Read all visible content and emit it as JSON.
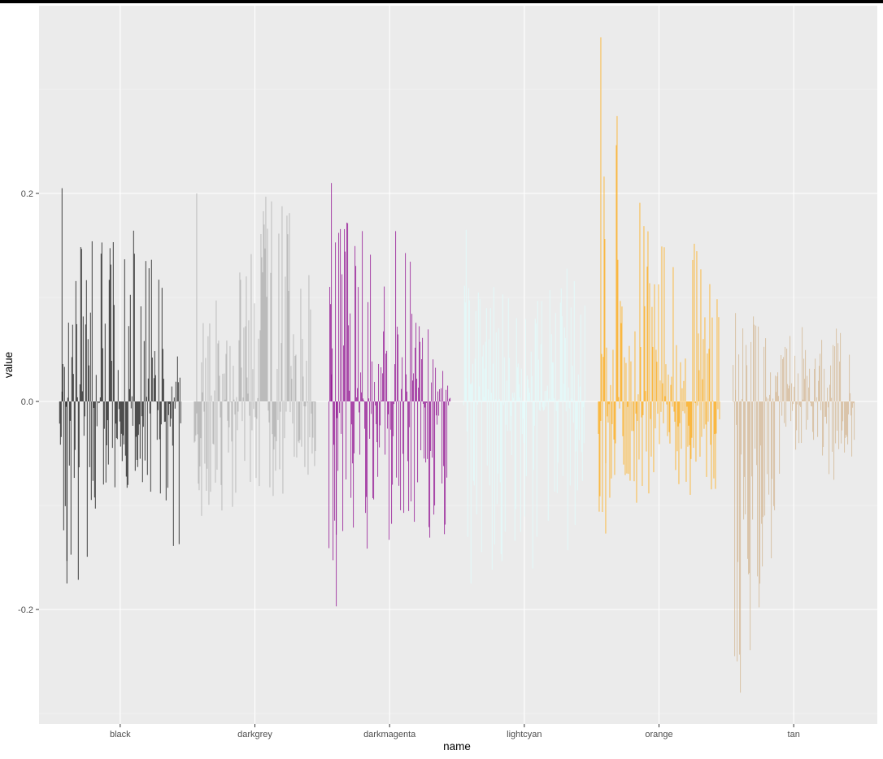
{
  "chart_data": {
    "type": "bar",
    "title": "",
    "xlabel": "name",
    "ylabel": "value",
    "categories": [
      "black",
      "darkgrey",
      "darkmagenta",
      "lightcyan",
      "orange",
      "tan"
    ],
    "ylim": [
      -0.3,
      0.35
    ],
    "yticks": [
      {
        "value": -0.2,
        "label": "-0.2"
      },
      {
        "value": 0.0,
        "label": "0.0"
      },
      {
        "value": 0.2,
        "label": "0.2"
      }
    ],
    "grid": true,
    "legend": "none",
    "bars_per_group": 150,
    "series": [
      {
        "category": "black",
        "color": "#000000",
        "opacity": 0.8,
        "max": 0.205,
        "min": -0.175,
        "envelope_top": [
          0.085,
          0.16,
          0.155,
          0.205,
          0.145,
          0.04
        ],
        "envelope_bottom": [
          -0.165,
          -0.175,
          -0.145,
          -0.075,
          -0.145,
          -0.14
        ]
      },
      {
        "category": "darkgrey",
        "color": "#A9A9A9",
        "opacity": 0.8,
        "max": 0.2,
        "min": -0.11,
        "envelope_top": [
          0.16,
          0.12,
          0.15,
          0.2,
          0.19,
          0.14
        ],
        "envelope_bottom": [
          -0.1,
          -0.11,
          -0.095,
          -0.09,
          -0.1,
          -0.07
        ]
      },
      {
        "category": "darkmagenta",
        "color": "#8B008B",
        "opacity": 0.8,
        "max": 0.21,
        "min": -0.197,
        "envelope_top": [
          0.21,
          0.175,
          0.16,
          0.18,
          0.075,
          0.02
        ],
        "envelope_bottom": [
          -0.197,
          -0.145,
          -0.14,
          -0.13,
          -0.135,
          -0.13
        ]
      },
      {
        "category": "lightcyan",
        "color": "#E0FFFF",
        "opacity": 0.8,
        "max": 0.165,
        "min": -0.175,
        "envelope_top": [
          0.165,
          0.12,
          0.1,
          0.13,
          0.13,
          0.13
        ],
        "envelope_bottom": [
          -0.15,
          -0.175,
          -0.14,
          -0.175,
          -0.165,
          -0.1
        ]
      },
      {
        "category": "orange",
        "color": "#FFA500",
        "opacity": 0.8,
        "max": 0.35,
        "min": -0.127,
        "envelope_top": [
          0.35,
          0.3,
          0.21,
          0.135,
          0.17,
          0.11
        ],
        "envelope_bottom": [
          -0.127,
          -0.09,
          -0.105,
          -0.09,
          -0.09,
          -0.09
        ]
      },
      {
        "category": "tan",
        "color": "#D2B48C",
        "opacity": 0.8,
        "max": 0.085,
        "min": -0.28,
        "envelope_top": [
          0.065,
          0.085,
          0.08,
          0.075,
          0.075,
          0.07
        ],
        "envelope_bottom": [
          -0.28,
          -0.24,
          -0.09,
          -0.04,
          -0.09,
          -0.05
        ]
      }
    ]
  }
}
